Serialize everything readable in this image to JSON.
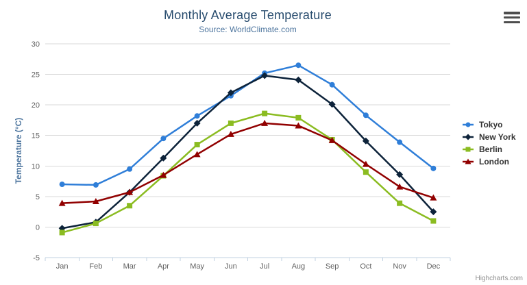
{
  "chart_data": {
    "type": "line",
    "title": "Monthly Average Temperature",
    "subtitle": "Source: WorldClimate.com",
    "xlabel": "",
    "ylabel": "Temperature (°C)",
    "categories": [
      "Jan",
      "Feb",
      "Mar",
      "Apr",
      "May",
      "Jun",
      "Jul",
      "Aug",
      "Sep",
      "Oct",
      "Nov",
      "Dec"
    ],
    "ylim": [
      -5,
      30
    ],
    "yticks": [
      -5,
      0,
      5,
      10,
      15,
      20,
      25,
      30
    ],
    "grid": "horizontal",
    "legend_position": "right",
    "series": [
      {
        "name": "Tokyo",
        "color": "#2f7ed8",
        "marker": "circle",
        "values": [
          7.0,
          6.9,
          9.5,
          14.5,
          18.2,
          21.5,
          25.2,
          26.5,
          23.3,
          18.3,
          13.9,
          9.6
        ]
      },
      {
        "name": "New York",
        "color": "#0d233a",
        "marker": "diamond",
        "values": [
          -0.2,
          0.8,
          5.7,
          11.3,
          17.0,
          22.0,
          24.8,
          24.1,
          20.1,
          14.1,
          8.6,
          2.5
        ]
      },
      {
        "name": "Berlin",
        "color": "#8bbc21",
        "marker": "square",
        "values": [
          -0.9,
          0.6,
          3.5,
          8.4,
          13.5,
          17.0,
          18.6,
          17.9,
          14.3,
          9.0,
          3.9,
          1.0
        ]
      },
      {
        "name": "London",
        "color": "#910000",
        "marker": "triangle",
        "values": [
          3.9,
          4.2,
          5.7,
          8.5,
          11.9,
          15.2,
          17.0,
          16.6,
          14.2,
          10.3,
          6.6,
          4.8
        ]
      }
    ],
    "colors": {
      "grid": "#d8d8d8",
      "axis_line": "#c0d0e0",
      "tick_label": "#606060"
    }
  },
  "export_menu": {
    "icon": "hamburger-icon"
  },
  "credits": {
    "label": "Highcharts.com"
  }
}
